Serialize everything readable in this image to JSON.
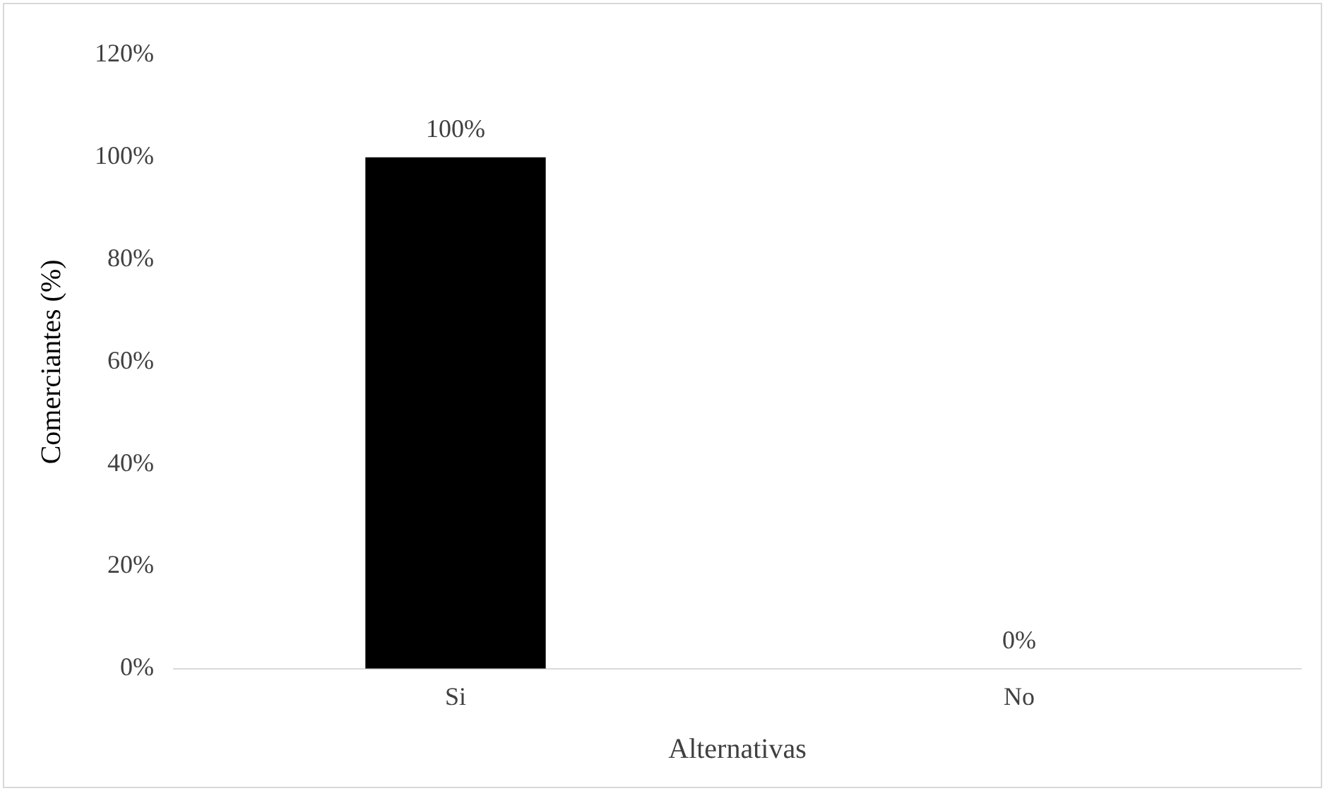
{
  "chart_data": {
    "type": "bar",
    "xlabel": "Alternativas",
    "ylabel": "Comerciantes (%)",
    "categories": [
      "Si",
      "No"
    ],
    "values": [
      100,
      0
    ],
    "color": "#000000",
    "value_labels": [
      "100%",
      "0%"
    ],
    "ylim": [
      0,
      120
    ],
    "yticks": [
      {
        "value": 0,
        "label": "0%"
      },
      {
        "value": 20,
        "label": "20%"
      },
      {
        "value": 40,
        "label": "40%"
      },
      {
        "value": 60,
        "label": "60%"
      },
      {
        "value": 80,
        "label": "80%"
      },
      {
        "value": 100,
        "label": "100%"
      },
      {
        "value": 120,
        "label": "120%"
      }
    ],
    "grid": false,
    "legend": false
  }
}
